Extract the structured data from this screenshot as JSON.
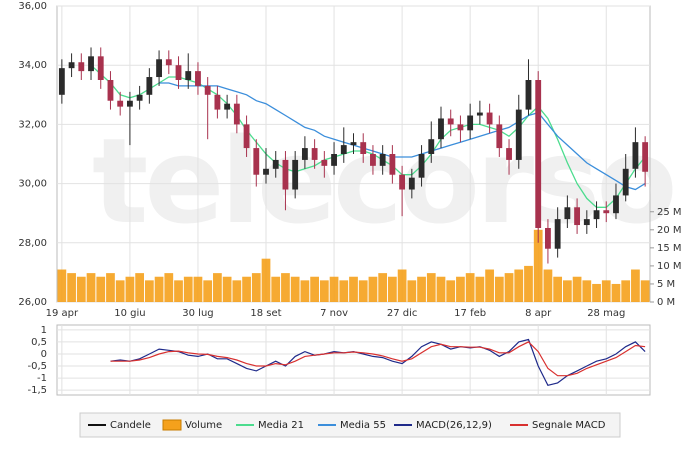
{
  "chart_data": {
    "type": "candlestick",
    "watermark": "telecorso",
    "categories": [
      "19 apr",
      null,
      null,
      null,
      null,
      null,
      null,
      "10 giu",
      null,
      null,
      null,
      null,
      null,
      null,
      "30 lug",
      null,
      null,
      null,
      null,
      null,
      null,
      "18 set",
      null,
      null,
      null,
      null,
      null,
      null,
      "7 nov",
      null,
      null,
      null,
      null,
      null,
      null,
      "27 dic",
      null,
      null,
      null,
      null,
      null,
      null,
      "17 feb",
      null,
      null,
      null,
      null,
      null,
      null,
      "8 apr",
      null,
      null,
      null,
      null,
      null,
      null,
      "28 mag",
      null,
      null,
      null,
      null
    ],
    "candle_name": "Candele",
    "up_color": "#2b2b2b",
    "down_color": "#a8324e",
    "open": [
      33.0,
      33.9,
      34.1,
      33.8,
      34.3,
      33.5,
      32.8,
      32.6,
      32.8,
      33.0,
      33.6,
      34.2,
      34.0,
      33.5,
      33.8,
      33.3,
      33.0,
      32.5,
      32.7,
      32.0,
      31.2,
      30.3,
      30.5,
      30.8,
      29.8,
      30.8,
      31.2,
      30.8,
      30.6,
      31.0,
      31.3,
      31.4,
      31.0,
      30.6,
      31.0,
      30.3,
      29.8,
      30.2,
      31.0,
      31.5,
      32.2,
      32.0,
      31.8,
      32.3,
      32.4,
      32.0,
      31.2,
      30.8,
      32.5,
      33.5,
      28.5,
      27.8,
      28.8,
      29.2,
      28.6,
      28.8,
      29.1,
      29.0,
      29.6,
      30.5,
      31.4
    ],
    "high": [
      34.2,
      34.4,
      34.4,
      34.6,
      34.6,
      33.8,
      33.1,
      33.1,
      33.3,
      33.9,
      34.5,
      34.5,
      34.3,
      34.4,
      34.1,
      33.6,
      33.3,
      33.0,
      33.0,
      32.3,
      31.5,
      31.2,
      31.1,
      31.1,
      31.1,
      31.6,
      31.5,
      31.1,
      31.4,
      31.9,
      31.7,
      31.7,
      31.3,
      31.3,
      31.3,
      30.6,
      30.5,
      31.3,
      32.1,
      32.6,
      32.5,
      32.3,
      32.7,
      32.8,
      32.7,
      32.3,
      31.5,
      33.0,
      34.2,
      33.8,
      28.8,
      29.2,
      29.6,
      29.5,
      29.1,
      29.4,
      29.4,
      30.0,
      31.0,
      31.9,
      31.6
    ],
    "low": [
      32.7,
      33.6,
      33.5,
      33.5,
      33.2,
      32.5,
      32.3,
      31.3,
      32.5,
      32.7,
      33.3,
      33.7,
      33.2,
      33.2,
      33.0,
      31.5,
      32.2,
      32.2,
      31.7,
      30.9,
      29.9,
      30.0,
      30.2,
      29.1,
      29.5,
      30.5,
      30.5,
      30.2,
      30.3,
      30.7,
      31.0,
      30.7,
      30.3,
      30.3,
      30.0,
      28.9,
      29.5,
      29.9,
      30.7,
      31.2,
      31.6,
      31.4,
      31.5,
      32.0,
      31.7,
      30.9,
      30.3,
      30.5,
      32.3,
      28.0,
      27.3,
      27.5,
      28.5,
      28.3,
      28.3,
      28.5,
      28.7,
      28.8,
      29.4,
      30.2,
      29.9
    ],
    "close": [
      33.9,
      34.1,
      33.8,
      34.3,
      33.5,
      32.8,
      32.6,
      32.8,
      33.0,
      33.6,
      34.2,
      34.0,
      33.5,
      33.8,
      33.3,
      33.0,
      32.5,
      32.7,
      32.0,
      31.2,
      30.3,
      30.5,
      30.8,
      29.8,
      30.8,
      31.2,
      30.8,
      30.6,
      31.0,
      31.3,
      31.4,
      31.0,
      30.6,
      31.0,
      30.3,
      29.8,
      30.2,
      31.0,
      31.5,
      32.2,
      32.0,
      31.8,
      32.3,
      32.4,
      32.0,
      31.2,
      30.8,
      32.5,
      33.5,
      28.5,
      27.8,
      28.8,
      29.2,
      28.6,
      28.8,
      29.1,
      29.0,
      29.6,
      30.5,
      31.4,
      30.4
    ],
    "volume": {
      "name": "Volume",
      "color": "#f5a11c",
      "axis": "y2",
      "values": [
        9,
        8,
        7,
        8,
        7,
        8,
        6,
        7,
        8,
        6,
        7,
        8,
        6,
        7,
        7,
        6,
        8,
        7,
        6,
        7,
        8,
        12,
        7,
        8,
        7,
        6,
        7,
        6,
        7,
        6,
        7,
        6,
        7,
        8,
        7,
        9,
        6,
        7,
        8,
        7,
        6,
        7,
        8,
        7,
        9,
        7,
        8,
        9,
        10,
        20,
        9,
        7,
        6,
        7,
        6,
        5,
        6,
        5,
        6,
        9,
        6
      ]
    },
    "series": [
      {
        "name": "Media 21",
        "color": "#4cdc8e",
        "values": [
          null,
          null,
          null,
          34.0,
          33.7,
          33.4,
          33.0,
          32.9,
          33.0,
          33.2,
          33.4,
          33.6,
          33.6,
          33.5,
          33.4,
          33.2,
          33.0,
          32.7,
          32.3,
          31.8,
          31.4,
          31.0,
          30.7,
          30.5,
          30.4,
          30.5,
          30.6,
          30.8,
          30.9,
          31.0,
          31.1,
          31.1,
          31.0,
          30.8,
          30.6,
          30.3,
          30.3,
          30.6,
          31.0,
          31.5,
          31.8,
          31.9,
          32.0,
          32.0,
          31.9,
          31.8,
          31.6,
          31.9,
          32.3,
          32.6,
          32.2,
          31.5,
          30.7,
          30.0,
          29.5,
          29.2,
          29.2,
          29.5,
          30.0,
          30.5,
          30.9
        ]
      },
      {
        "name": "Media 55",
        "color": "#3b8edb",
        "values": [
          null,
          null,
          null,
          null,
          null,
          null,
          null,
          null,
          null,
          null,
          33.4,
          33.4,
          33.3,
          33.3,
          33.3,
          33.3,
          33.3,
          33.2,
          33.1,
          33.0,
          32.8,
          32.7,
          32.5,
          32.3,
          32.1,
          31.9,
          31.8,
          31.6,
          31.5,
          31.4,
          31.3,
          31.2,
          31.1,
          31.0,
          30.9,
          30.9,
          30.9,
          31.0,
          31.1,
          31.2,
          31.3,
          31.4,
          31.5,
          31.6,
          31.7,
          31.8,
          31.9,
          32.1,
          32.3,
          32.4,
          32.0,
          31.6,
          31.3,
          31.0,
          30.7,
          30.5,
          30.3,
          30.1,
          29.9,
          29.8,
          30.0
        ]
      }
    ],
    "ylim": [
      26,
      36
    ],
    "yticks": [
      {
        "value": 26,
        "label": "26,00"
      },
      {
        "value": 28,
        "label": "28,00"
      },
      {
        "value": 30,
        "label": "30,00"
      },
      {
        "value": 32,
        "label": "32,00"
      },
      {
        "value": 34,
        "label": "34,00"
      },
      {
        "value": 36,
        "label": "36,00"
      }
    ],
    "y2lim": [
      0,
      82
    ],
    "y2ticks": [
      {
        "value": 0,
        "label": "0 M"
      },
      {
        "value": 5,
        "label": "5 M"
      },
      {
        "value": 10,
        "label": "10 M"
      },
      {
        "value": 15,
        "label": "15 M"
      },
      {
        "value": 20,
        "label": "20 M"
      },
      {
        "value": 25,
        "label": "25 M"
      }
    ],
    "grid": true,
    "macd": {
      "ylim": [
        -1.7,
        1.2
      ],
      "yticks": [
        1,
        {
          "value": 0.5,
          "label": "0,5"
        },
        0,
        {
          "value": -0.5,
          "label": "-0,5"
        },
        -1,
        {
          "value": -1.5,
          "label": "-1,5"
        }
      ],
      "series": [
        {
          "name": "MACD(26,12,9)",
          "color": "#1f2a8a",
          "values": [
            null,
            null,
            null,
            null,
            null,
            -0.3,
            -0.25,
            -0.3,
            -0.2,
            0,
            0.2,
            0.15,
            0.1,
            -0.05,
            -0.1,
            0,
            -0.2,
            -0.2,
            -0.4,
            -0.6,
            -0.7,
            -0.5,
            -0.3,
            -0.5,
            -0.1,
            0.1,
            -0.05,
            0,
            0.1,
            0.05,
            0.1,
            0,
            -0.1,
            -0.15,
            -0.3,
            -0.4,
            -0.1,
            0.3,
            0.5,
            0.4,
            0.2,
            0.3,
            0.25,
            0.3,
            0.15,
            -0.1,
            0.1,
            0.5,
            0.6,
            -0.5,
            -1.3,
            -1.2,
            -0.9,
            -0.7,
            -0.5,
            -0.3,
            -0.2,
            0,
            0.3,
            0.5,
            0.1
          ]
        },
        {
          "name": "Segnale MACD",
          "color": "#d8302f",
          "values": [
            null,
            null,
            null,
            null,
            null,
            -0.3,
            -0.3,
            -0.3,
            -0.25,
            -0.15,
            0,
            0.1,
            0.12,
            0.05,
            0,
            -0.02,
            -0.1,
            -0.15,
            -0.25,
            -0.4,
            -0.5,
            -0.5,
            -0.4,
            -0.45,
            -0.3,
            -0.1,
            -0.05,
            0,
            0.05,
            0.05,
            0.08,
            0.05,
            0,
            -0.08,
            -0.2,
            -0.3,
            -0.2,
            0.05,
            0.3,
            0.4,
            0.3,
            0.3,
            0.28,
            0.28,
            0.2,
            0.05,
            0.05,
            0.3,
            0.5,
            0.1,
            -0.6,
            -0.9,
            -0.9,
            -0.8,
            -0.6,
            -0.45,
            -0.3,
            -0.15,
            0.1,
            0.35,
            0.3
          ]
        }
      ]
    }
  }
}
